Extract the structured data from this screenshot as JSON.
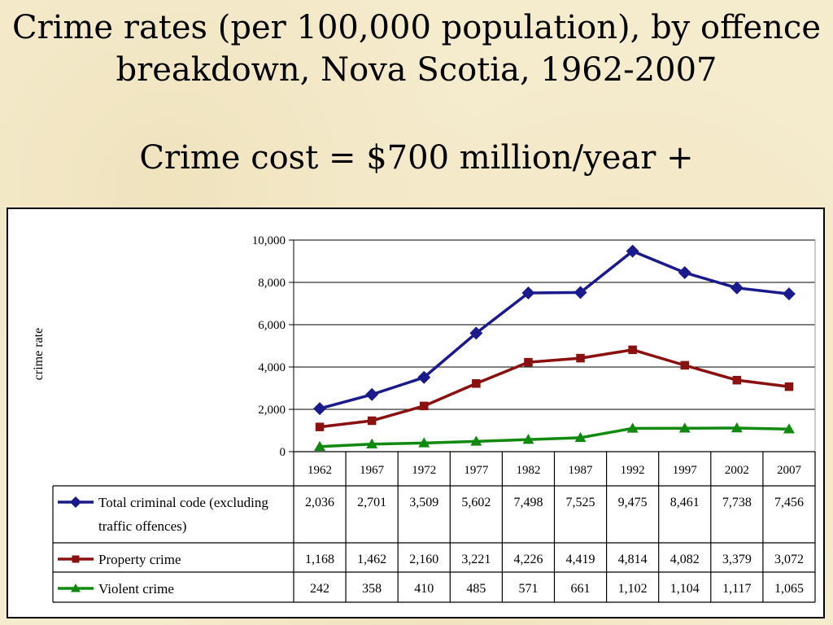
{
  "title": "Crime rates (per 100,000 population), by offence breakdown, Nova Scotia, 1962-2007",
  "subtitle": "Crime cost = $700 million/year +",
  "chart_data": {
    "type": "line",
    "title": "Crime rates (per 100,000 population), by offence breakdown, Nova Scotia, 1962-2007",
    "xlabel": "",
    "ylabel": "crime rate",
    "ylim": [
      0,
      10000
    ],
    "yticks": [
      "0",
      "2,000",
      "4,000",
      "6,000",
      "8,000",
      "10,000"
    ],
    "ytick_values": [
      0,
      2000,
      4000,
      6000,
      8000,
      10000
    ],
    "grid": true,
    "legend": "data-table",
    "categories": [
      "1962",
      "1967",
      "1972",
      "1977",
      "1982",
      "1987",
      "1992",
      "1997",
      "2002",
      "2007"
    ],
    "series": [
      {
        "name": "Total criminal code (excluding traffic offences)",
        "label_lines": [
          "Total criminal code (excluding",
          "traffic offences)"
        ],
        "color": "#1a1a8c",
        "marker": "diamond",
        "values": [
          2036,
          2701,
          3509,
          5602,
          7498,
          7525,
          9475,
          8461,
          7738,
          7456
        ],
        "labels": [
          "2,036",
          "2,701",
          "3,509",
          "5,602",
          "7,498",
          "7,525",
          "9,475",
          "8,461",
          "7,738",
          "7,456"
        ]
      },
      {
        "name": "Property crime",
        "label_lines": [
          "Property crime"
        ],
        "color": "#8b1010",
        "marker": "square",
        "values": [
          1168,
          1462,
          2160,
          3221,
          4226,
          4419,
          4814,
          4082,
          3379,
          3072
        ],
        "labels": [
          "1,168",
          "1,462",
          "2,160",
          "3,221",
          "4,226",
          "4,419",
          "4,814",
          "4,082",
          "3,379",
          "3,072"
        ]
      },
      {
        "name": "Violent crime",
        "label_lines": [
          "Violent crime"
        ],
        "color": "#0f8a0f",
        "marker": "triangle",
        "values": [
          242,
          358,
          410,
          485,
          571,
          661,
          1102,
          1104,
          1117,
          1065
        ],
        "labels": [
          "242",
          "358",
          "410",
          "485",
          "571",
          "661",
          "1,102",
          "1,104",
          "1,117",
          "1,065"
        ]
      }
    ]
  }
}
